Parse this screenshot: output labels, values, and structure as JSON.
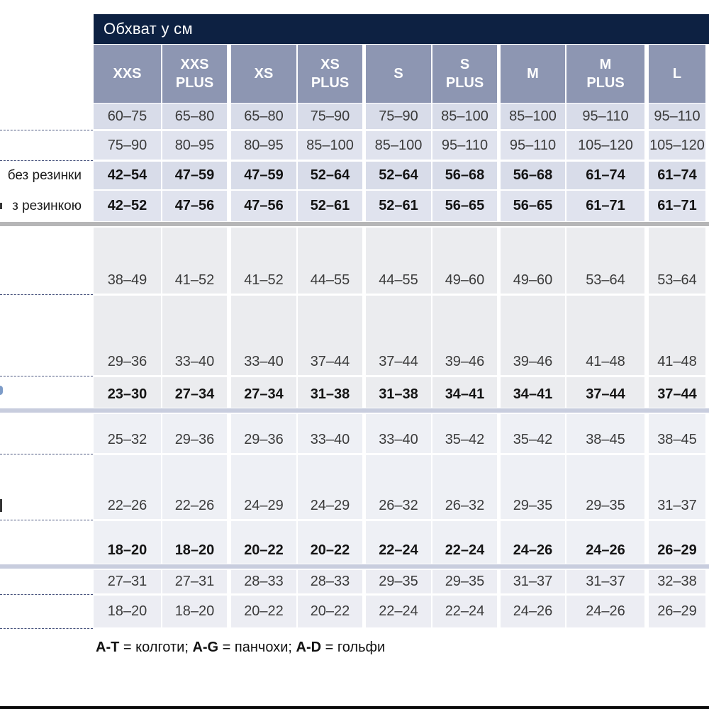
{
  "title": "Обхват у см",
  "columns": [
    {
      "label": "XXS",
      "lines": [
        "XXS"
      ]
    },
    {
      "label": "XXS PLUS",
      "lines": [
        "XXS",
        "PLUS"
      ]
    },
    {
      "label": "XS",
      "lines": [
        "XS"
      ]
    },
    {
      "label": "XS PLUS",
      "lines": [
        "XS",
        "PLUS"
      ]
    },
    {
      "label": "S",
      "lines": [
        "S"
      ]
    },
    {
      "label": "S PLUS",
      "lines": [
        "S",
        "PLUS"
      ]
    },
    {
      "label": "M",
      "lines": [
        "M"
      ]
    },
    {
      "label": "M PLUS",
      "lines": [
        "M",
        "PLUS"
      ]
    },
    {
      "label": "L",
      "lines": [
        "L"
      ]
    }
  ],
  "rows": [
    {
      "label": "",
      "bold": false,
      "values": [
        "60–75",
        "65–80",
        "65–80",
        "75–90",
        "75–90",
        "85–100",
        "85–100",
        "95–110",
        "95–110"
      ]
    },
    {
      "label": "",
      "bold": false,
      "values": [
        "75–90",
        "80–95",
        "80–95",
        "85–100",
        "85–100",
        "95–110",
        "95–110",
        "105–120",
        "105–120"
      ]
    },
    {
      "label": "без резинки",
      "bold": true,
      "values": [
        "42–54",
        "47–59",
        "47–59",
        "52–64",
        "52–64",
        "56–68",
        "56–68",
        "61–74",
        "61–74"
      ]
    },
    {
      "label": "з резинкою",
      "bold": true,
      "values": [
        "42–52",
        "47–56",
        "47–56",
        "52–61",
        "52–61",
        "56–65",
        "56–65",
        "61–71",
        "61–71"
      ]
    },
    {
      "label": "",
      "bold": false,
      "values": [
        "38–49",
        "41–52",
        "41–52",
        "44–55",
        "44–55",
        "49–60",
        "49–60",
        "53–64",
        "53–64"
      ]
    },
    {
      "label": "",
      "bold": false,
      "values": [
        "29–36",
        "33–40",
        "33–40",
        "37–44",
        "37–44",
        "39–46",
        "39–46",
        "41–48",
        "41–48"
      ]
    },
    {
      "label": "",
      "bold": true,
      "values": [
        "23–30",
        "27–34",
        "27–34",
        "31–38",
        "31–38",
        "34–41",
        "34–41",
        "37–44",
        "37–44"
      ]
    },
    {
      "label": "",
      "bold": false,
      "values": [
        "25–32",
        "29–36",
        "29–36",
        "33–40",
        "33–40",
        "35–42",
        "35–42",
        "38–45",
        "38–45"
      ]
    },
    {
      "label": "",
      "bold": false,
      "values": [
        "22–26",
        "22–26",
        "24–29",
        "24–29",
        "26–32",
        "26–32",
        "29–35",
        "29–35",
        "31–37"
      ]
    },
    {
      "label": "",
      "bold": true,
      "values": [
        "18–20",
        "18–20",
        "20–22",
        "20–22",
        "22–24",
        "22–24",
        "24–26",
        "24–26",
        "26–29"
      ]
    },
    {
      "label": "",
      "bold": false,
      "values": [
        "27–31",
        "27–31",
        "28–33",
        "28–33",
        "29–35",
        "29–35",
        "31–37",
        "31–37",
        "32–38"
      ]
    },
    {
      "label": "",
      "bold": false,
      "values": [
        "18–20",
        "18–20",
        "20–22",
        "20–22",
        "22–24",
        "22–24",
        "24–26",
        "24–26",
        "26–29"
      ]
    }
  ],
  "legend": {
    "parts": [
      {
        "text": "A-T",
        "bold": true
      },
      {
        "text": " = колготи; ",
        "bold": false
      },
      {
        "text": "A-G",
        "bold": true
      },
      {
        "text": " = панчохи; ",
        "bold": false
      },
      {
        "text": "A-D",
        "bold": true
      },
      {
        "text": " = гольфи",
        "bold": false
      }
    ]
  },
  "colors": {
    "header_bar": "#0d2142",
    "column_header": "#8d96b2",
    "row_lavender": "#d8dce9",
    "row_lavender_light": "#e0e3ee",
    "row_gray": "#ebecef",
    "row_bluewhite": "#eef0f5",
    "row_cool": "#ecedf3",
    "separator_gray": "#b6b6b7",
    "separator_lavender": "#c8cdde",
    "dotted_line": "#46527c",
    "fragment_blue": "#7d9cc8",
    "fragment_dark": "#333333",
    "bottom_bar": "#0a0a0a"
  }
}
